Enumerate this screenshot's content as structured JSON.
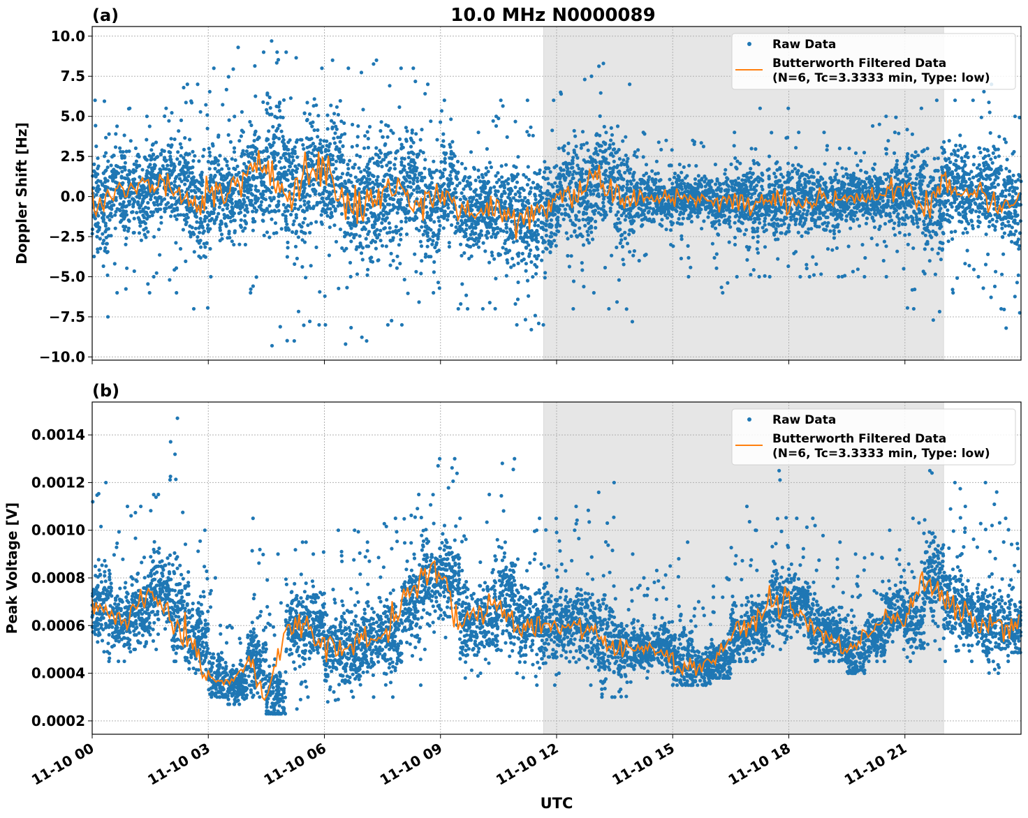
{
  "title": "10.0 MHz N0000089",
  "colors": {
    "raw": "#1f77b4",
    "filtered": "#ff7f0e",
    "shade": "#e6e6e6"
  },
  "chart_data": [
    {
      "type": "scatter",
      "panel_label": "(a)",
      "ylabel": "Doppler Shift [Hz]",
      "xlabel": "",
      "xlim_hours_utc": [
        0,
        24
      ],
      "ylim": [
        -10.2,
        10.6
      ],
      "yticks": [
        10.0,
        7.5,
        5.0,
        2.5,
        0.0,
        -2.5,
        -5.0,
        -7.5,
        -10.0
      ],
      "ytick_labels": [
        "10.0",
        "7.5",
        "5.0",
        "2.5",
        "0.0",
        "−2.5",
        "−5.0",
        "−7.5",
        "−10.0"
      ],
      "grid": true,
      "shaded_interval_utc": [
        "11:40",
        "22:00"
      ],
      "legend": {
        "placement": "top-right",
        "entries": [
          "Raw Data",
          "Butterworth Filtered Data",
          "(N=6, Tc=3.3333 min, Type: low)"
        ]
      },
      "bin_start_hours": [
        0,
        0.5,
        1,
        1.5,
        2,
        2.5,
        3,
        3.5,
        4,
        4.5,
        5,
        5.5,
        6,
        6.5,
        7,
        7.5,
        8,
        8.5,
        9,
        9.5,
        10,
        10.5,
        11,
        11.5,
        12,
        12.5,
        13,
        13.5,
        14,
        14.5,
        15,
        15.5,
        16,
        16.5,
        17,
        17.5,
        18,
        18.5,
        19,
        19.5,
        20,
        20.5,
        21,
        21.5,
        22,
        22.5,
        23,
        23.5
      ],
      "raw_min": [
        -7.5,
        -6,
        -6,
        -5,
        -6,
        -7,
        -5,
        -3,
        -6,
        -9.3,
        -9,
        -8,
        -8,
        -9.2,
        -9,
        -8,
        -8,
        -6,
        -7,
        -7,
        -7,
        -8,
        -8.3,
        -8,
        -7,
        -6,
        -7,
        -7.8,
        -4,
        -3,
        -5,
        -2,
        -6,
        -5,
        -5,
        -5,
        -5,
        -5,
        -5,
        -5,
        -4,
        -5,
        -7,
        -7.7,
        -6,
        -5,
        -7,
        -8.2
      ],
      "raw_max": [
        6,
        5.5,
        5,
        5.5,
        7,
        7,
        8,
        9.3,
        9,
        9.7,
        9,
        8,
        8.5,
        8,
        8.5,
        8,
        8,
        7,
        6,
        4,
        5,
        6,
        6,
        6,
        6.5,
        7.5,
        8.3,
        7,
        4,
        3.5,
        2,
        3.5,
        2,
        4,
        5.5,
        5.5,
        4,
        4,
        3,
        3,
        4.5,
        5,
        5.5,
        6,
        6,
        6,
        7,
        5
      ],
      "filtered": [
        -0.5,
        0.5,
        0.3,
        0.8,
        0.5,
        -0.5,
        0.2,
        0.3,
        1.0,
        2.0,
        0.5,
        1.5,
        1.8,
        -0.5,
        -0.5,
        0.3,
        0.8,
        -0.8,
        0.5,
        -1.0,
        -0.8,
        -0.8,
        -1.5,
        -1.0,
        0.3,
        0.2,
        1.5,
        -0.2,
        0.0,
        -0.2,
        0.0,
        0.0,
        -0.3,
        -0.3,
        -0.5,
        -0.3,
        -0.2,
        -0.3,
        -0.2,
        0.0,
        0.0,
        0.2,
        0.3,
        -0.8,
        0.8,
        0.2,
        0.5,
        -0.5
      ]
    },
    {
      "type": "scatter",
      "panel_label": "(b)",
      "ylabel": "Peak Voltage [V]",
      "xlabel": "UTC",
      "xlim_hours_utc": [
        0,
        24
      ],
      "ylim": [
        0.000144,
        0.001538
      ],
      "yticks": [
        0.0014,
        0.0012,
        0.001,
        0.0008,
        0.0006,
        0.0004,
        0.0002
      ],
      "ytick_labels": [
        "0.0014",
        "0.0012",
        "0.0010",
        "0.0008",
        "0.0006",
        "0.0004",
        "0.0002"
      ],
      "xticks_hours": [
        0,
        3,
        6,
        9,
        12,
        15,
        18,
        21
      ],
      "xtick_labels": [
        "11-10 00",
        "11-10 03",
        "11-10 06",
        "11-10 09",
        "11-10 12",
        "11-10 15",
        "11-10 18",
        "11-10 21"
      ],
      "grid": true,
      "shaded_interval_utc": [
        "11:40",
        "22:00"
      ],
      "legend": {
        "placement": "top-right",
        "entries": [
          "Raw Data",
          "Butterworth Filtered Data",
          "(N=6, Tc=3.3333 min, Type: low)"
        ]
      },
      "bin_start_hours": [
        0,
        0.5,
        1,
        1.5,
        2,
        2.5,
        3,
        3.5,
        4,
        4.5,
        5,
        5.5,
        6,
        6.5,
        7,
        7.5,
        8,
        8.5,
        9,
        9.5,
        10,
        10.5,
        11,
        11.5,
        12,
        12.5,
        13,
        13.5,
        14,
        14.5,
        15,
        15.5,
        16,
        16.5,
        17,
        17.5,
        18,
        18.5,
        19,
        19.5,
        20,
        20.5,
        21,
        21.5,
        22,
        22.5,
        23,
        23.5
      ],
      "raw_min": [
        0.00045,
        0.00045,
        0.0005,
        0.0005,
        0.00045,
        0.0004,
        0.0003,
        0.00027,
        0.0003,
        0.00023,
        0.00025,
        0.0003,
        0.00028,
        0.0003,
        0.0003,
        0.0003,
        0.00035,
        0.0005,
        0.00055,
        0.00038,
        0.0004,
        0.0004,
        0.00035,
        0.00035,
        0.0004,
        0.00035,
        0.0003,
        0.0003,
        0.00038,
        0.0004,
        0.00035,
        0.00035,
        0.00038,
        0.00045,
        0.00045,
        0.0005,
        0.00055,
        0.00045,
        0.00045,
        0.0004,
        0.00045,
        0.0005,
        0.00045,
        0.0005,
        0.00045,
        0.00045,
        0.0004,
        0.00045
      ],
      "raw_max": [
        0.0012,
        0.0011,
        0.0011,
        0.00115,
        0.00147,
        0.001,
        0.0008,
        0.0006,
        0.00105,
        0.0009,
        0.00095,
        0.00095,
        0.001,
        0.001,
        0.00095,
        0.00105,
        0.00115,
        0.0013,
        0.0013,
        0.00105,
        0.00115,
        0.0013,
        0.001,
        0.00105,
        0.001,
        0.0011,
        0.0012,
        0.0009,
        0.0008,
        0.00085,
        0.00095,
        0.0007,
        0.0008,
        0.0011,
        0.001,
        0.00125,
        0.00105,
        0.00105,
        0.00095,
        0.0009,
        0.0009,
        0.001,
        0.00105,
        0.00125,
        0.0012,
        0.0011,
        0.0012,
        0.00105
      ],
      "filtered": [
        0.0007,
        0.00062,
        0.00065,
        0.00075,
        0.00065,
        0.00055,
        0.00038,
        0.00035,
        0.00045,
        0.0003,
        0.0006,
        0.0006,
        0.0005,
        0.0005,
        0.00055,
        0.00055,
        0.0007,
        0.0008,
        0.00082,
        0.0006,
        0.00065,
        0.0007,
        0.0006,
        0.0006,
        0.0006,
        0.0006,
        0.00055,
        0.0005,
        0.0005,
        0.00052,
        0.00045,
        0.00042,
        0.00045,
        0.00055,
        0.0006,
        0.0007,
        0.0007,
        0.0006,
        0.00055,
        0.0005,
        0.00055,
        0.00065,
        0.00062,
        0.0008,
        0.0007,
        0.00065,
        0.0006,
        0.0006
      ]
    }
  ]
}
